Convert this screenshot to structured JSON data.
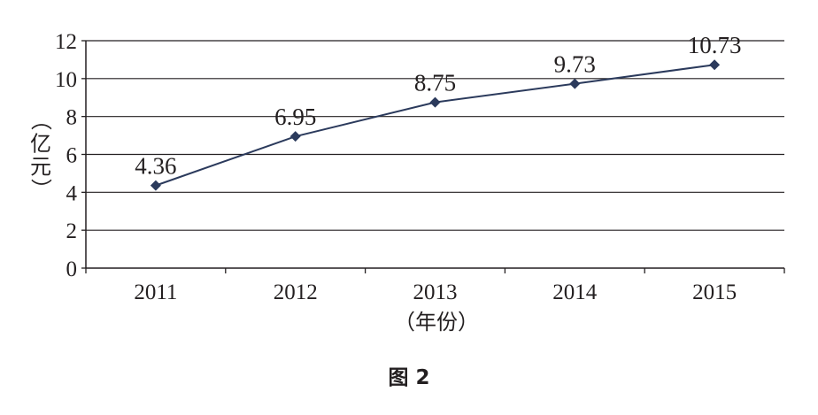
{
  "chart_data": {
    "type": "line",
    "categories": [
      "2011",
      "2012",
      "2013",
      "2014",
      "2015"
    ],
    "values": [
      4.36,
      6.95,
      8.75,
      9.73,
      10.73
    ],
    "data_labels": [
      "4.36",
      "6.95",
      "8.75",
      "9.73",
      "10.73"
    ],
    "xlabel": "（年份）",
    "ylabel": "（亿元）",
    "ylim": [
      0,
      12
    ],
    "yticks": [
      "0",
      "2",
      "4",
      "6",
      "8",
      "10",
      "12"
    ],
    "grid": "horizontal",
    "marker": "diamond",
    "line_color": "#2b3a5c"
  },
  "caption": "图 2"
}
